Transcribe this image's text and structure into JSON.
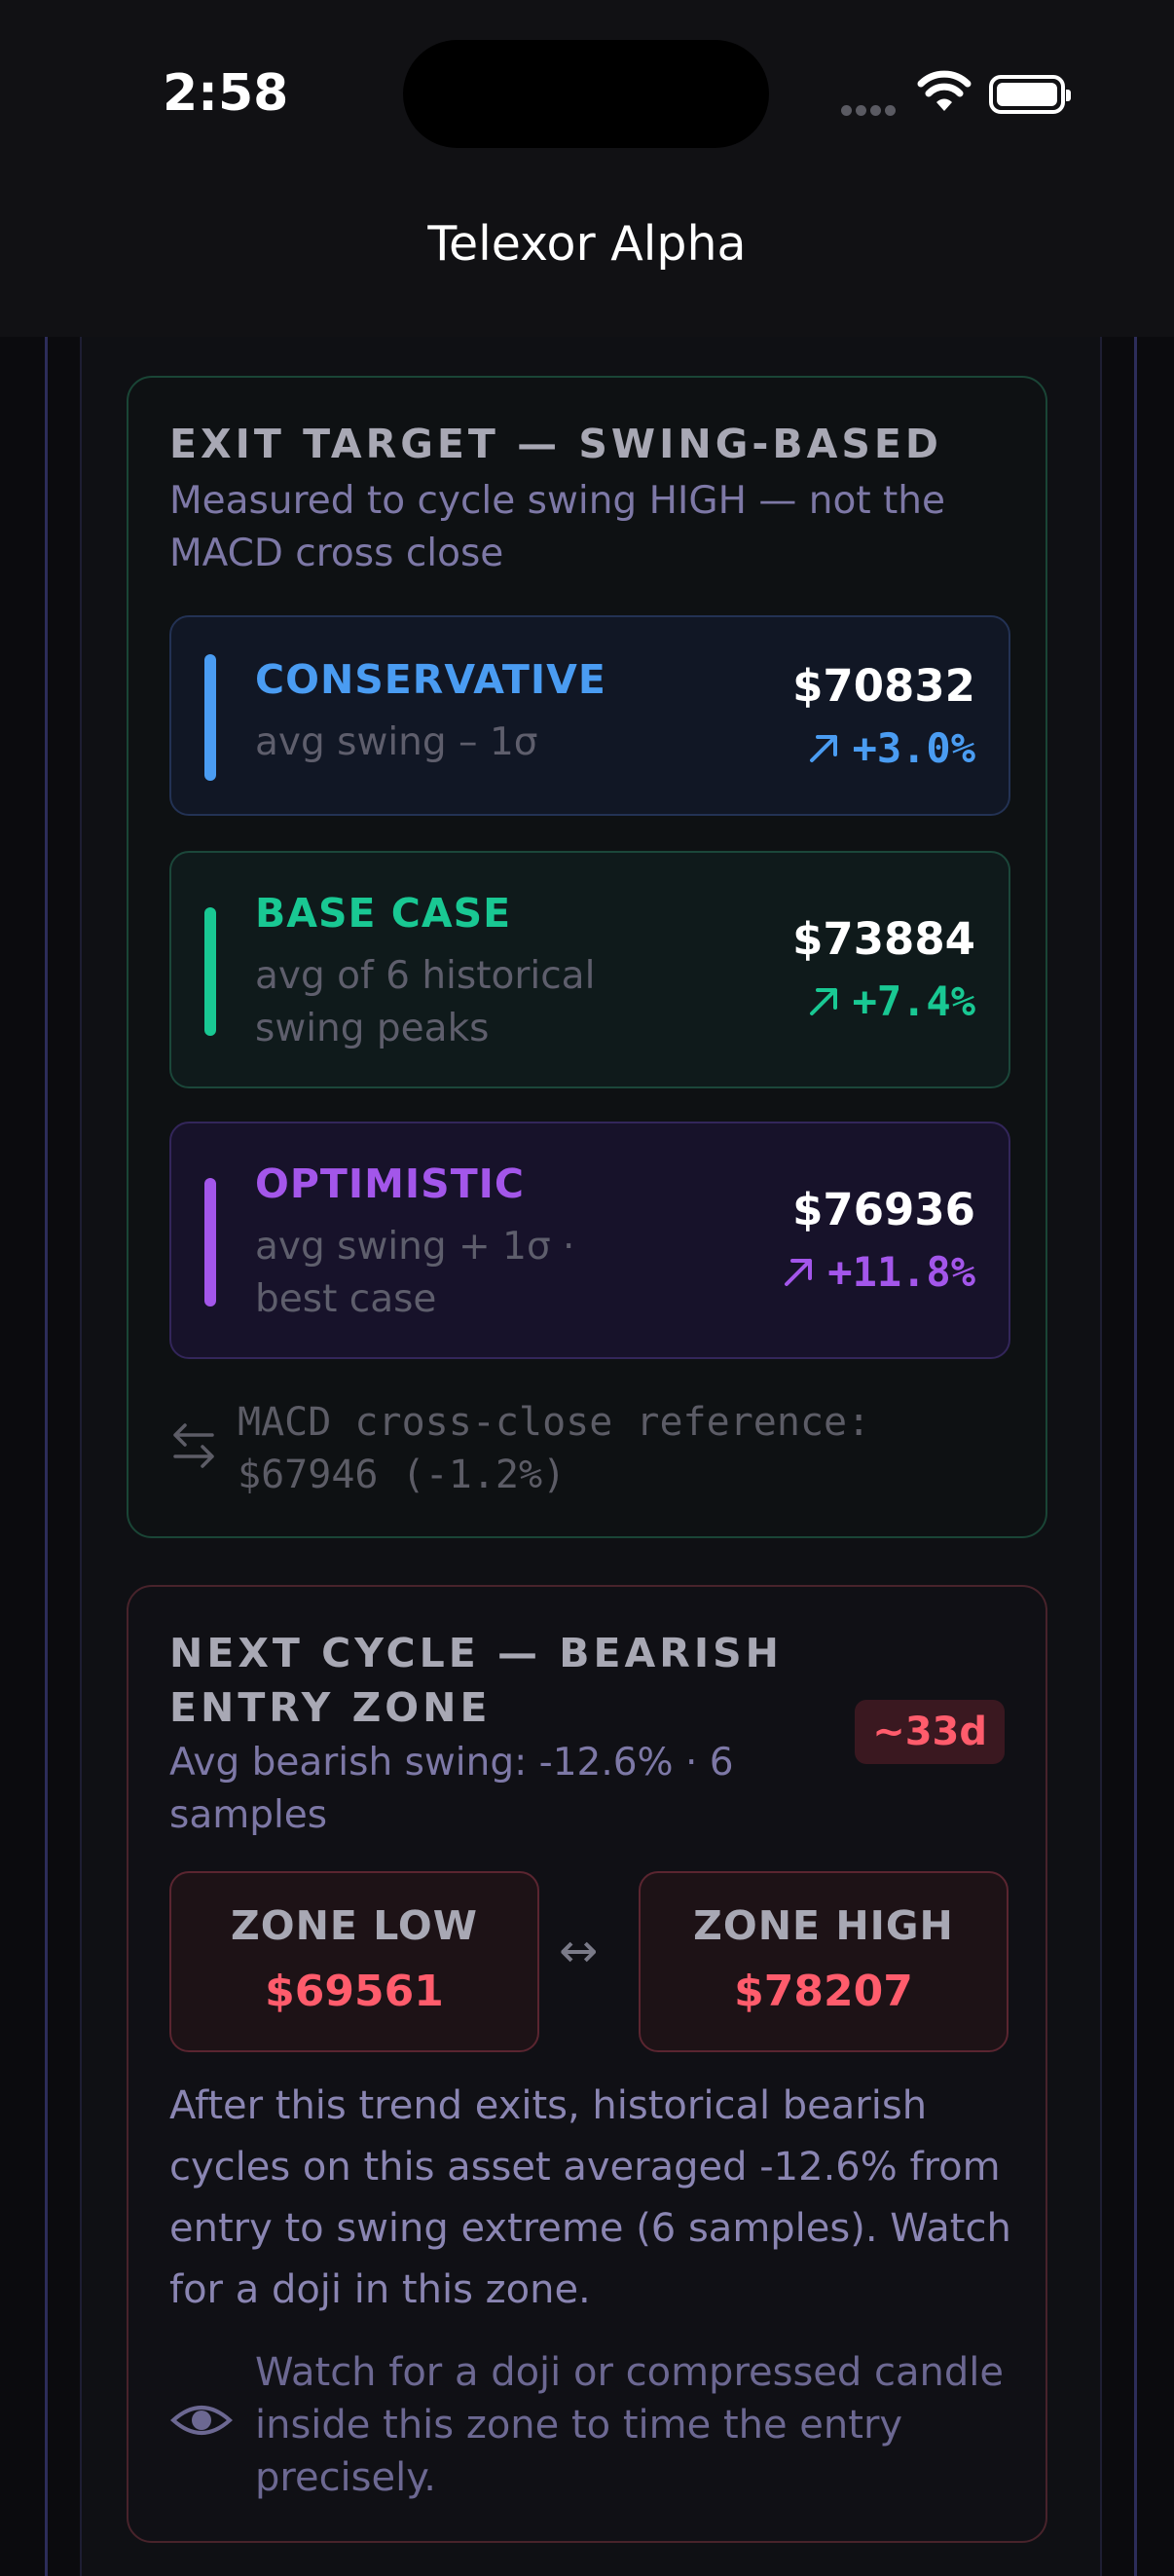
{
  "status": {
    "time": "2:58"
  },
  "nav": {
    "title": "Telexor Alpha"
  },
  "exit": {
    "heading": "EXIT TARGET — SWING-BASED",
    "subtitle": "Measured to cycle swing HIGH — not the MACD cross close",
    "targets": [
      {
        "name": "CONSERVATIVE",
        "desc": "avg swing – 1σ",
        "price": "$70832",
        "pct": "+3.0%",
        "color": "#4a9cf2",
        "icon": "arrow-up-right-icon"
      },
      {
        "name": "BASE CASE",
        "desc": "avg of 6 historical swing peaks",
        "price": "$73884",
        "pct": "+7.4%",
        "color": "#19c893",
        "icon": "arrow-up-right-icon"
      },
      {
        "name": "OPTIMISTIC",
        "desc": "avg swing + 1σ · best case",
        "price": "$76936",
        "pct": "+11.8%",
        "color": "#a356ea",
        "icon": "arrow-up-right-icon"
      }
    ],
    "reference": "MACD cross-close reference: $67946  (-1.2%)"
  },
  "next": {
    "heading": "NEXT CYCLE — BEARISH ENTRY ZONE",
    "subtitle": "Avg bearish swing: -12.6% · 6 samples",
    "badge": "~33d",
    "zone_low_label": "ZONE LOW",
    "zone_low_value": "$69561",
    "zone_high_label": "ZONE HIGH",
    "zone_high_value": "$78207",
    "paragraph": "After this trend exits, historical bearish cycles on this asset averaged -12.6% from entry to swing extreme (6 samples). Watch for a doji in this zone.",
    "watch_tip": "Watch for a doji or compressed candle inside this zone to time the entry precisely."
  }
}
